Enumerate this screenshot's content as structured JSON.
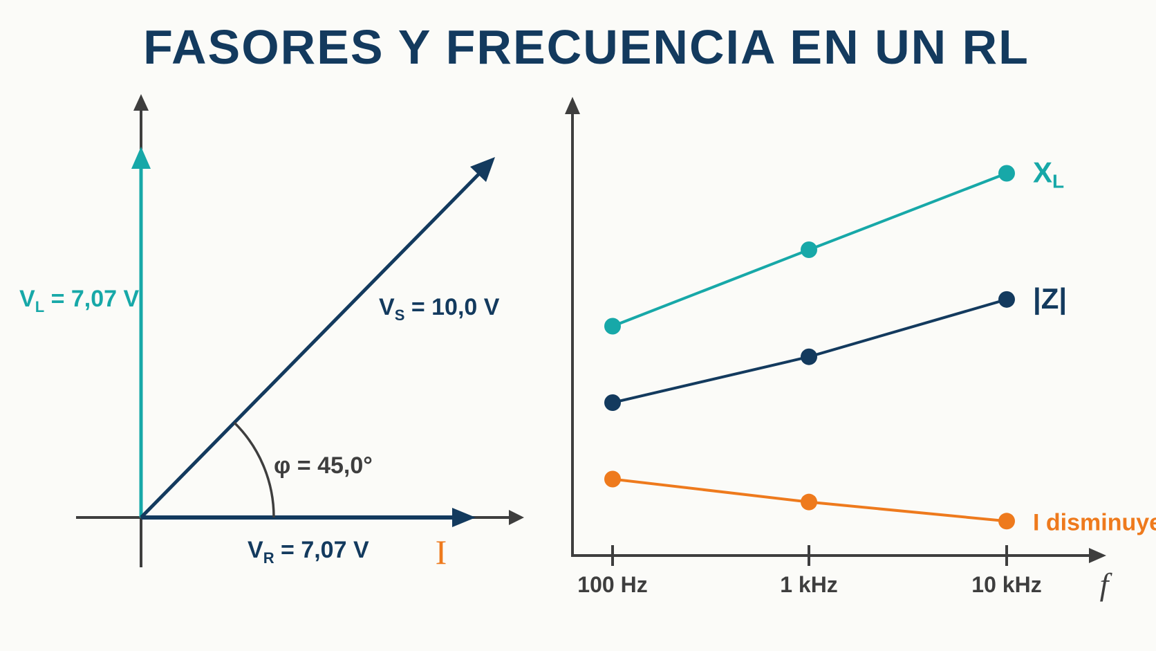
{
  "title": "FASORES Y FRECUENCIA EN UN RL",
  "colors": {
    "navy": "#133a5e",
    "teal": "#17a8a8",
    "orange": "#ee7a1d",
    "axis": "#3e3e3e",
    "background": "#fbfbf8"
  },
  "phasor": {
    "vl": {
      "symbol": "V",
      "sub": "L",
      "value": " = 7,07 V"
    },
    "vs": {
      "symbol": "V",
      "sub": "S",
      "value": " = 10,0 V"
    },
    "vr": {
      "symbol": "V",
      "sub": "R",
      "value": " = 7,07 V"
    },
    "phi": "φ = 45,0°",
    "current": "I"
  },
  "chart_data": {
    "type": "line",
    "categories": [
      "100 Hz",
      "1 kHz",
      "10 kHz"
    ],
    "xlabel": "f",
    "series": [
      {
        "name": "XL",
        "label_main": "X",
        "label_sub": "L",
        "values": [
          2.5,
          3.5,
          4.5
        ]
      },
      {
        "name": "|Z|",
        "values": [
          1.5,
          2.1,
          2.85
        ]
      },
      {
        "name": "I disminuye",
        "values": [
          0.5,
          0.2,
          -0.05
        ]
      }
    ],
    "ylim": [
      -0.5,
      5.5
    ],
    "grid": false
  }
}
